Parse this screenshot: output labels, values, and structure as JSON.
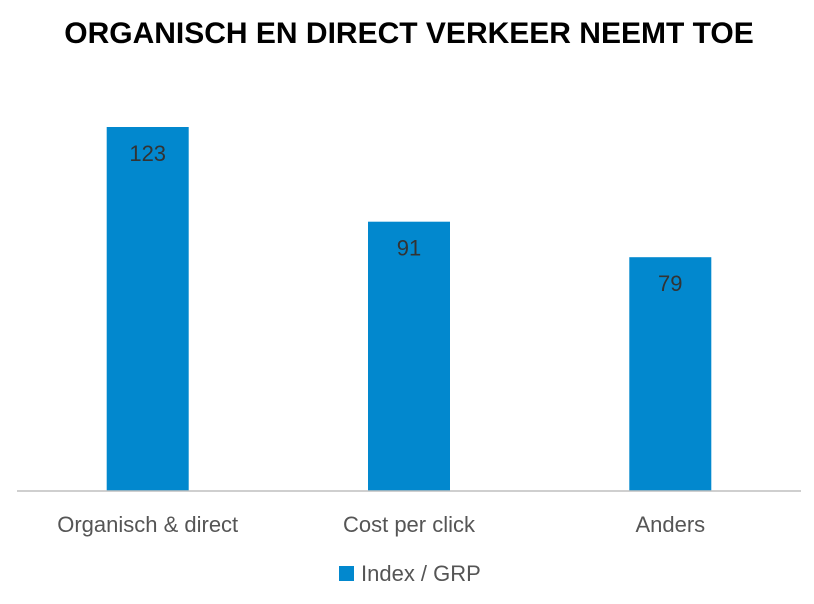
{
  "chart_data": {
    "type": "bar",
    "title": "ORGANISCH EN DIRECT VERKEER NEEMT TOE",
    "categories": [
      "Organisch & direct",
      "Cost per click",
      "Anders"
    ],
    "series": [
      {
        "name": "Index / GRP",
        "values": [
          123,
          91,
          79
        ]
      }
    ],
    "ylim": [
      0,
      123
    ],
    "grid": false,
    "legend": "bottom-center",
    "bar_color": "#0288ce",
    "axis_color": "#bfbfbf"
  }
}
